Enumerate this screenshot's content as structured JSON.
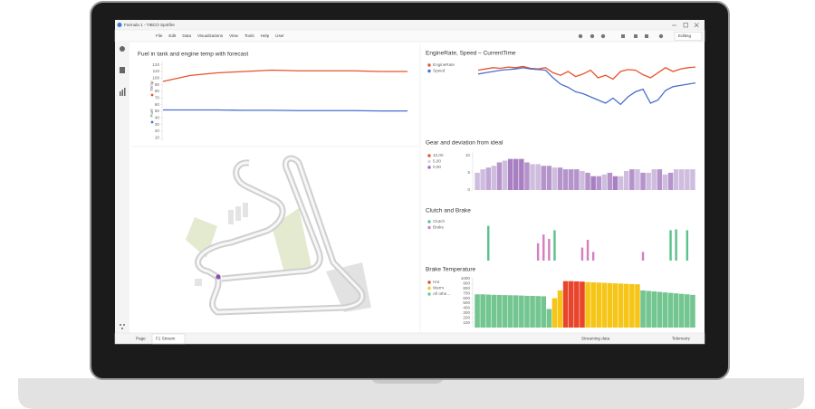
{
  "window": {
    "title": "Formula 1 - TIBCO Spotfire",
    "menu": [
      "File",
      "Edit",
      "Data",
      "Visualizations",
      "View",
      "Tools",
      "Help",
      "User"
    ],
    "mode": "Editing"
  },
  "tabs": {
    "pages": [
      "Page",
      "F1 Stream"
    ],
    "status": [
      "Streaming data",
      "Telemetry"
    ]
  },
  "panels": [
    {
      "type": "line",
      "title": "Fuel in tank and engine temp with forecast",
      "ylim": [
        5,
        125
      ],
      "yticks": [
        10,
        20,
        30,
        40,
        50,
        60,
        70,
        80,
        90,
        100,
        110,
        120
      ],
      "series": [
        {
          "name": "Temp",
          "color": "#e8532b",
          "values": [
            95,
            104,
            108,
            110,
            112,
            111,
            111,
            111,
            110,
            110
          ]
        },
        {
          "name": "Fuel",
          "color": "#4a6fcf",
          "values": [
            52,
            52,
            52,
            51.5,
            51.5,
            51,
            51,
            51,
            50.5,
            50.5
          ]
        }
      ]
    },
    {
      "type": "line",
      "title": "EngineRate, Speed – CurrentTime",
      "ylim": [
        0,
        100
      ],
      "series": [
        {
          "name": "EngineRate",
          "color": "#e8532b",
          "values": [
            82,
            84,
            86,
            85,
            87,
            86,
            88,
            85,
            84,
            86,
            78,
            74,
            80,
            72,
            76,
            82,
            70,
            74,
            68,
            80,
            83,
            82,
            75,
            70,
            78,
            86,
            80,
            84,
            86,
            87
          ]
        },
        {
          "name": "Speed",
          "color": "#4a6fcf",
          "values": [
            76,
            78,
            80,
            82,
            83,
            84,
            86,
            84,
            83,
            82,
            70,
            60,
            55,
            48,
            45,
            40,
            35,
            30,
            38,
            28,
            40,
            48,
            52,
            30,
            35,
            50,
            56,
            58,
            60,
            62
          ]
        }
      ]
    },
    {
      "type": "gradient-bar",
      "title": "Gear and deviation from ideal",
      "ylim": [
        0,
        11
      ],
      "yticks": [
        0,
        5,
        10
      ],
      "legend": [
        {
          "label": "10,00",
          "color": "#e8532b"
        },
        {
          "label": "5,00",
          "color": "#dcd2e8"
        },
        {
          "label": "0,00",
          "color": "#9b6bb8"
        }
      ],
      "values": [
        5,
        6,
        6.5,
        7,
        8,
        8.5,
        9,
        9,
        9,
        8,
        7.5,
        7.5,
        7,
        7,
        6.5,
        6.5,
        6,
        6,
        6,
        5.5,
        5,
        4,
        4,
        4.5,
        5,
        4,
        4,
        5.5,
        6,
        6,
        5,
        5,
        6,
        6,
        4.5,
        5,
        6,
        6,
        6,
        6
      ],
      "deviation": [
        4,
        4,
        3,
        4,
        2,
        4,
        1,
        1,
        1,
        2,
        4,
        4,
        2,
        2,
        4,
        2,
        2,
        2,
        2,
        4,
        2,
        1,
        2,
        4,
        2,
        1,
        4,
        4,
        2,
        4,
        2,
        4,
        4,
        2,
        4,
        2,
        4,
        4,
        4,
        4
      ]
    },
    {
      "type": "overlay-bar",
      "title": "Clutch and Brake",
      "ylim": [
        0,
        100
      ],
      "series": [
        {
          "name": "Clutch",
          "color": "#5cc28d",
          "values": [
            0,
            0,
            80,
            0,
            0,
            0,
            0,
            0,
            0,
            0,
            0,
            0,
            0,
            0,
            70,
            0,
            0,
            0,
            0,
            0,
            0,
            0,
            0,
            0,
            0,
            0,
            0,
            0,
            0,
            0,
            0,
            0,
            0,
            0,
            0,
            70,
            72,
            0,
            70,
            0
          ]
        },
        {
          "name": "Brake",
          "color": "#d67fbf",
          "values": [
            0,
            0,
            0,
            0,
            0,
            0,
            0,
            0,
            0,
            0,
            0,
            40,
            60,
            50,
            0,
            0,
            0,
            0,
            0,
            30,
            48,
            20,
            0,
            0,
            0,
            0,
            0,
            0,
            0,
            0,
            20,
            0,
            0,
            0,
            0,
            0,
            0,
            0,
            0,
            0
          ]
        }
      ]
    },
    {
      "type": "stacked-bar",
      "title": "Brake Temperature",
      "ylim": [
        0,
        1000
      ],
      "yticks": [
        100,
        200,
        300,
        400,
        500,
        600,
        700,
        800,
        900,
        1000
      ],
      "series": [
        {
          "name": "Hot",
          "color": "#e8452c",
          "values": [
            null,
            null,
            null,
            null,
            null,
            null,
            null,
            null,
            null,
            null,
            null,
            null,
            null,
            null,
            null,
            null,
            950,
            950,
            945,
            940,
            null,
            null,
            null,
            null,
            null,
            null,
            null,
            null,
            null,
            null,
            null,
            null,
            null,
            null,
            null,
            null,
            null,
            null,
            null,
            null
          ]
        },
        {
          "name": "Warm",
          "color": "#f5c518",
          "values": [
            null,
            null,
            null,
            null,
            null,
            null,
            null,
            null,
            null,
            null,
            null,
            null,
            null,
            null,
            600,
            760,
            null,
            null,
            null,
            null,
            930,
            925,
            920,
            915,
            910,
            905,
            900,
            895,
            890,
            885,
            null,
            null,
            null,
            null,
            null,
            null,
            null,
            null,
            null,
            null
          ]
        },
        {
          "name": "All othe...",
          "color": "#74c691",
          "values": [
            680,
            680,
            675,
            670,
            668,
            665,
            662,
            660,
            655,
            650,
            648,
            645,
            640,
            380,
            null,
            null,
            null,
            null,
            null,
            null,
            null,
            null,
            null,
            null,
            null,
            null,
            null,
            null,
            null,
            null,
            760,
            750,
            740,
            730,
            720,
            710,
            700,
            690,
            680,
            670
          ]
        }
      ]
    }
  ]
}
